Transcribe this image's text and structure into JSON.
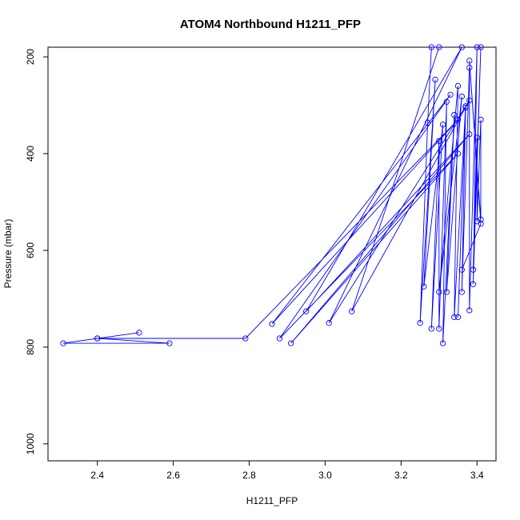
{
  "chart_data": {
    "type": "line",
    "title": "ATOM4 Northbound H1211_PFP",
    "xlabel": "H1211_PFP",
    "ylabel": "Pressure (mbar)",
    "xlim": [
      2.27,
      3.45
    ],
    "ylim": [
      1035,
      180
    ],
    "y_reversed": true,
    "x_ticks": [
      "2.4",
      "2.6",
      "2.8",
      "3.0",
      "3.2",
      "3.4"
    ],
    "y_ticks": [
      "200",
      "400",
      "600",
      "800",
      "1000"
    ],
    "grid": false,
    "line_color": "#0000ff",
    "series": [
      {
        "values": [
          [
            2.51,
            770
          ],
          [
            2.4,
            782
          ],
          [
            2.31,
            792
          ],
          [
            2.59,
            792
          ],
          [
            2.4,
            782
          ],
          [
            2.79,
            782
          ],
          [
            3.35,
            330
          ],
          [
            2.86,
            752
          ],
          [
            3.33,
            278
          ],
          [
            2.88,
            782
          ],
          [
            3.35,
            400
          ],
          [
            2.91,
            792
          ],
          [
            3.38,
            360
          ],
          [
            2.95,
            726
          ],
          [
            3.36,
            180
          ],
          [
            3.01,
            750
          ],
          [
            3.38,
            290
          ],
          [
            3.07,
            726
          ],
          [
            3.3,
            180
          ],
          [
            3.28,
            180
          ],
          [
            3.27,
            336
          ],
          [
            3.25,
            750
          ],
          [
            3.29,
            247
          ],
          [
            3.26,
            675
          ],
          [
            3.31,
            340
          ],
          [
            3.28,
            762
          ],
          [
            3.3,
            374
          ],
          [
            3.3,
            762
          ],
          [
            3.32,
            293
          ],
          [
            3.31,
            792
          ],
          [
            3.34,
            320
          ],
          [
            3.32,
            686
          ],
          [
            3.36,
            282
          ],
          [
            3.3,
            686
          ],
          [
            3.35,
            260
          ],
          [
            3.34,
            738
          ],
          [
            3.37,
            302
          ],
          [
            3.35,
            738
          ],
          [
            3.37,
            305
          ],
          [
            3.36,
            686
          ],
          [
            3.38,
            222
          ],
          [
            3.38,
            724
          ],
          [
            3.4,
            180
          ],
          [
            3.39,
            670
          ],
          [
            3.41,
            180
          ],
          [
            3.39,
            640
          ],
          [
            3.4,
            367
          ],
          [
            3.4,
            540
          ],
          [
            3.41,
            330
          ],
          [
            3.41,
            536
          ],
          [
            3.38,
            208
          ],
          [
            3.41,
            545
          ],
          [
            3.36,
            640
          ]
        ]
      }
    ]
  }
}
